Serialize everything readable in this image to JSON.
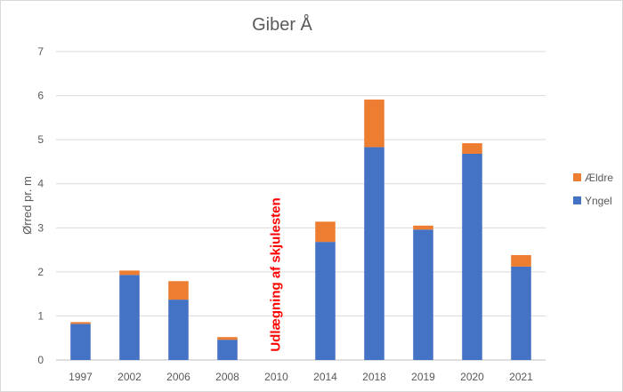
{
  "chart_data": {
    "type": "bar",
    "stacked": true,
    "title": "Giber Å",
    "xlabel": "",
    "ylabel": "Ørred pr. m",
    "ylim": [
      0,
      7
    ],
    "yticks": [
      "0",
      "1",
      "2",
      "3",
      "4",
      "5",
      "6",
      "7"
    ],
    "grid": true,
    "legend_position": "right",
    "categories": [
      "1997",
      "2002",
      "2006",
      "2008",
      "2010",
      "2014",
      "2018",
      "2019",
      "2020",
      "2021"
    ],
    "series": [
      {
        "name": "Yngel",
        "color": "#4472c4",
        "values": [
          0.82,
          1.93,
          1.37,
          0.46,
          0,
          2.68,
          4.83,
          2.96,
          4.68,
          2.12
        ]
      },
      {
        "name": "Ældre",
        "color": "#ed7d31",
        "values": [
          0.04,
          0.1,
          0.42,
          0.06,
          0,
          0.46,
          1.08,
          0.09,
          0.24,
          0.26
        ]
      }
    ],
    "legend_order": [
      "Ældre",
      "Yngel"
    ],
    "annotation": {
      "text": "Udlægning af skjulesten",
      "category": "2010",
      "color": "#ff0000"
    }
  }
}
